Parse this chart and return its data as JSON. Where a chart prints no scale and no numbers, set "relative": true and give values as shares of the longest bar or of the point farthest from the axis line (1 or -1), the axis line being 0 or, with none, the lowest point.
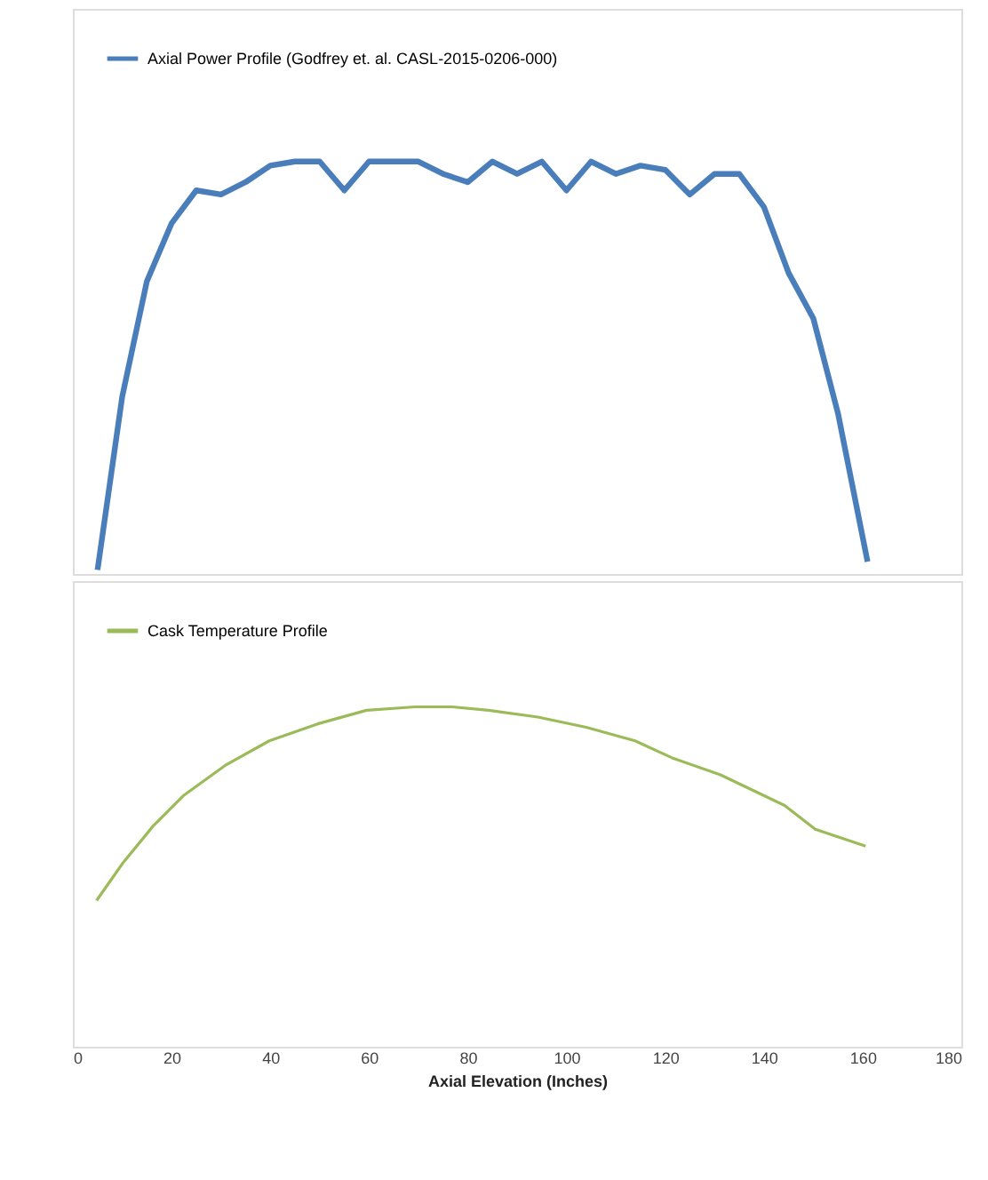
{
  "chart_data": [
    {
      "type": "line",
      "relative": true,
      "xlim": [
        0,
        180
      ],
      "tick_labels": false,
      "legend": "top left",
      "grid": false,
      "x": [
        5,
        10,
        15,
        20,
        25,
        30,
        35,
        40,
        45,
        50,
        55,
        60,
        65,
        70,
        75,
        80,
        85,
        90,
        95,
        100,
        105,
        110,
        115,
        120,
        125,
        130,
        135,
        140,
        145,
        150,
        155,
        161
      ],
      "series": [
        {
          "name": "Axial Power Profile (Godfrey et. al. CASL-2015-0206-000)",
          "color": "#4a7ebb",
          "values": [
            0.01,
            0.43,
            0.71,
            0.85,
            0.93,
            0.92,
            0.95,
            0.99,
            1.0,
            1.0,
            0.93,
            1.0,
            1.0,
            1.0,
            0.97,
            0.95,
            1.0,
            0.97,
            1.0,
            0.93,
            1.0,
            0.97,
            0.99,
            0.98,
            0.92,
            0.97,
            0.97,
            0.89,
            0.73,
            0.62,
            0.39,
            0.03
          ]
        }
      ]
    },
    {
      "type": "line",
      "relative": true,
      "xlim": [
        0,
        180
      ],
      "xticks": [
        0,
        20,
        40,
        60,
        80,
        100,
        120,
        140,
        160,
        180
      ],
      "tick_labels": "x",
      "xlabel": "Axial Elevation (Inches)",
      "legend": "top left",
      "grid": false,
      "x": [
        4.8,
        10.1,
        16.3,
        22.5,
        31.1,
        39.8,
        49.6,
        59.5,
        69.4,
        76.8,
        84.2,
        94.2,
        104,
        113.9,
        121.4,
        131.2,
        144.2,
        150.4,
        160.6
      ],
      "series": [
        {
          "name": "Cask Temperature Profile",
          "color": "#9bbb59",
          "values": [
            0.43,
            0.54,
            0.65,
            0.74,
            0.83,
            0.9,
            0.95,
            0.99,
            1.0,
            1.0,
            0.99,
            0.97,
            0.94,
            0.9,
            0.85,
            0.8,
            0.71,
            0.64,
            0.59
          ]
        }
      ]
    }
  ]
}
